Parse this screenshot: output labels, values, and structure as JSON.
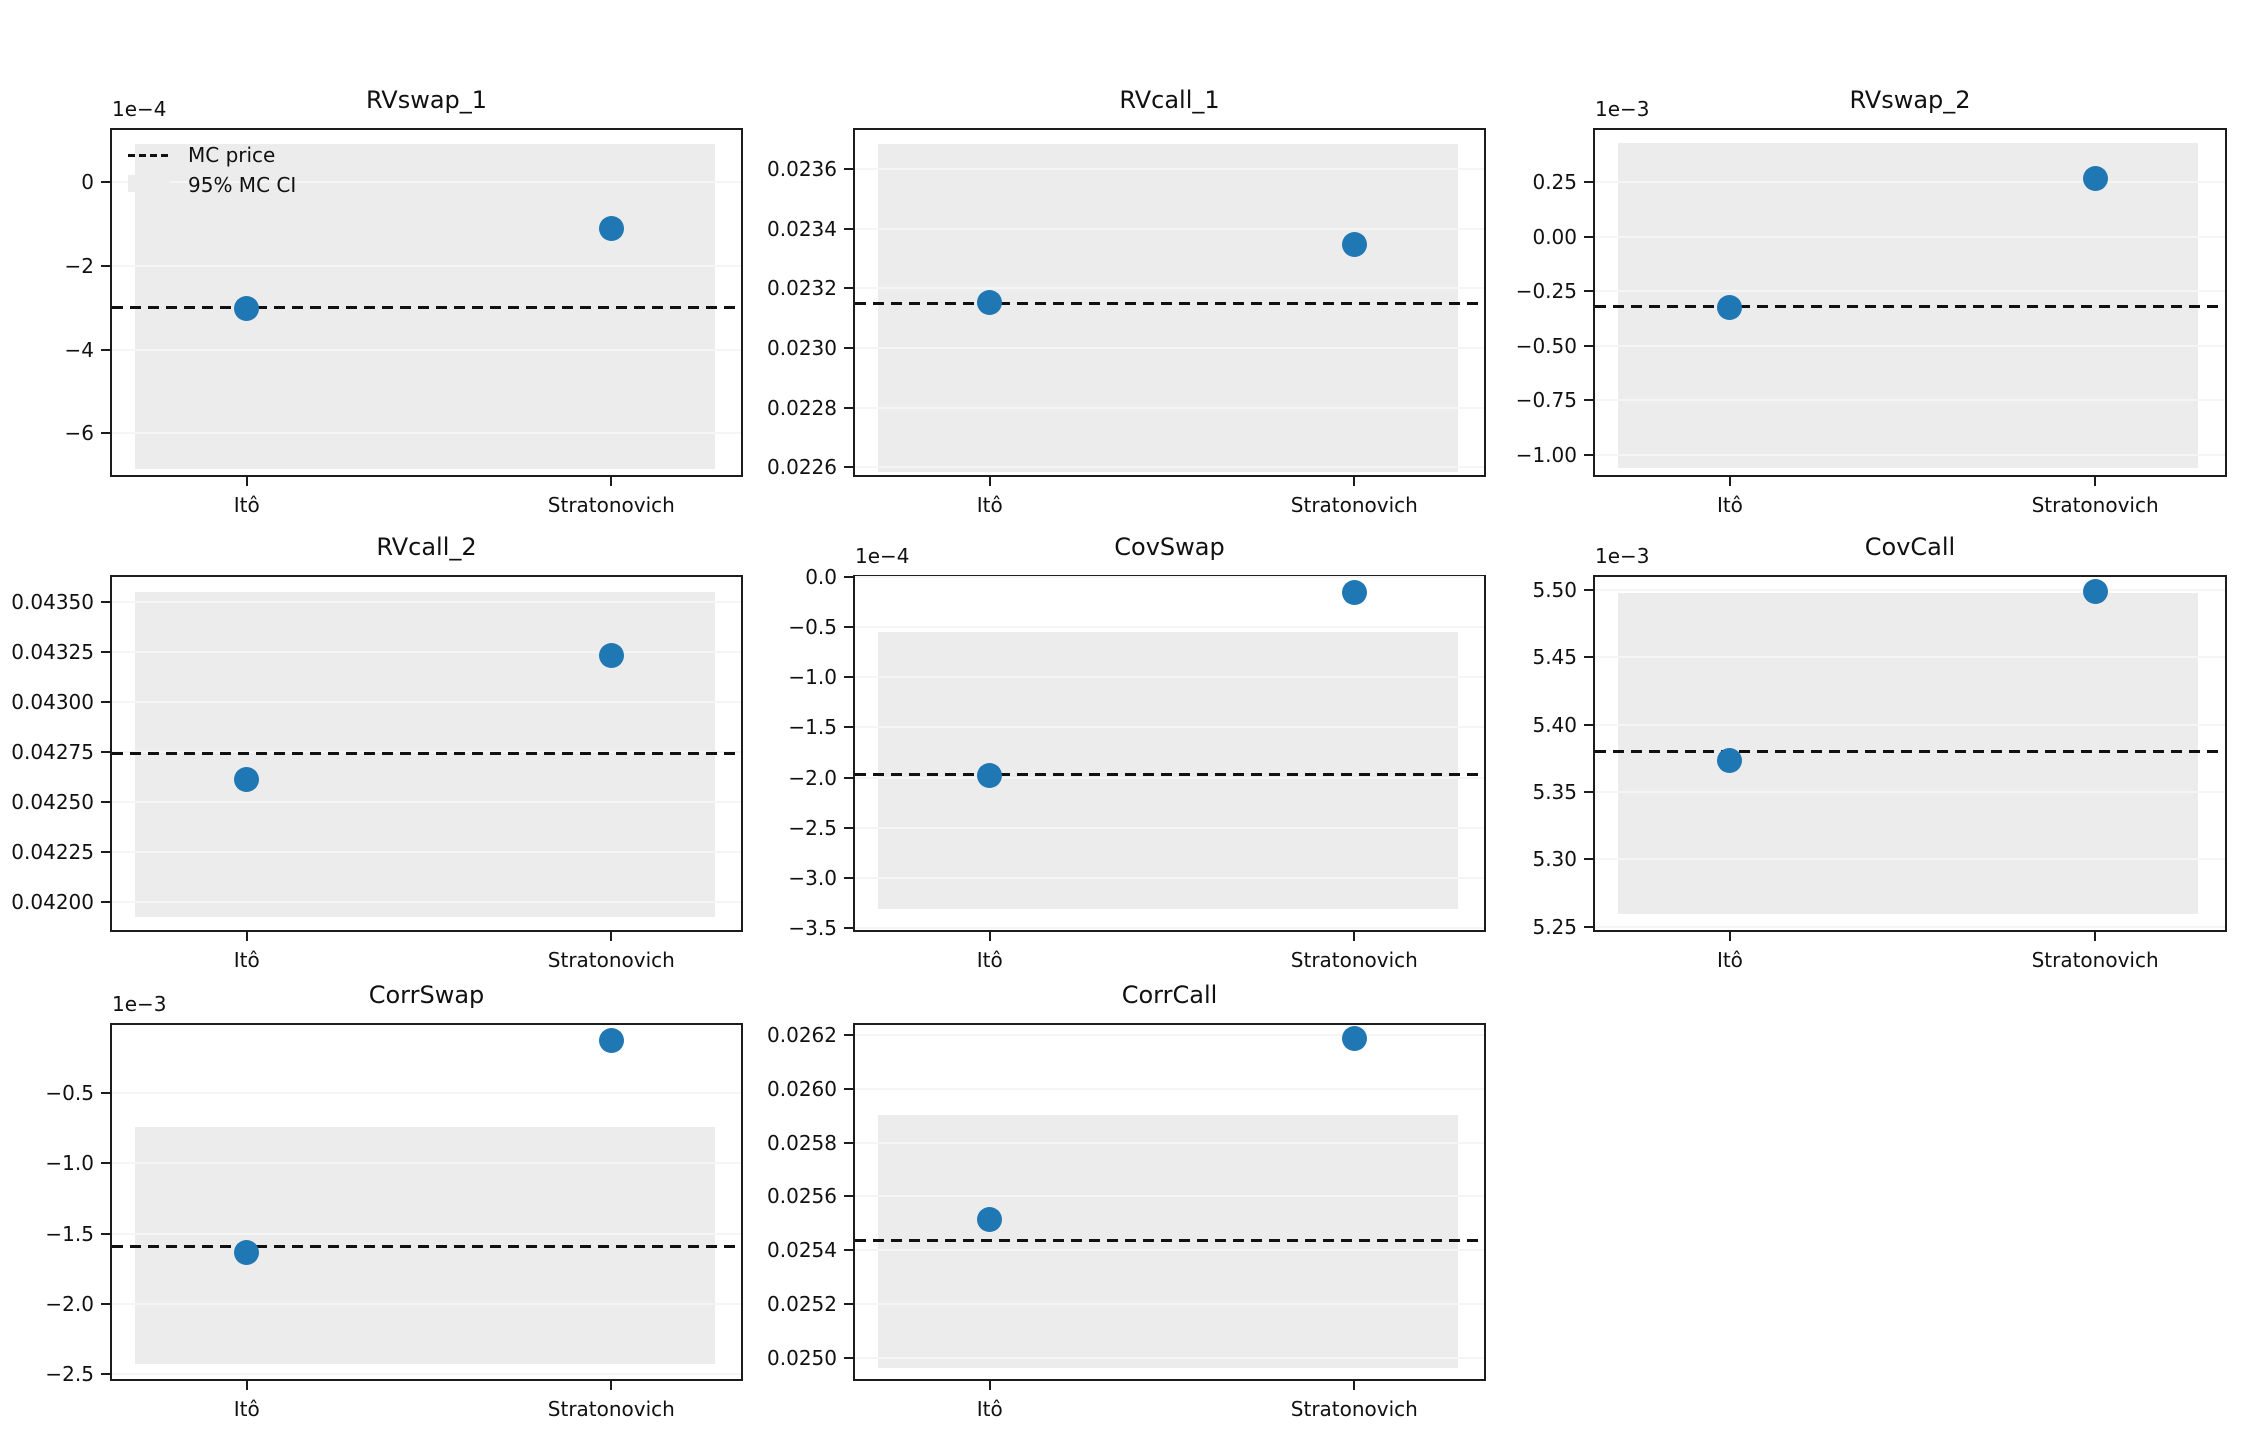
{
  "figure": {
    "background": "#ffffff",
    "point_color": "#1f77b4",
    "ci_color": "#ececec",
    "grid_color": "#f5f5f5",
    "line_color": "#111111",
    "spine_color": "#1c1c1c",
    "categories": [
      "Itô",
      "Stratonovich"
    ],
    "legend": {
      "mc_label": "MC price",
      "ci_label": "95% MC CI"
    }
  },
  "chart_data": [
    {
      "type": "scatter",
      "title": "RVswap_1",
      "offset_label": "1e−4",
      "legend": true,
      "categories": [
        "Itô",
        "Stratonovich"
      ],
      "values": {
        "ito": -0.000303,
        "strat": -0.00011
      },
      "mc_price": -0.000298,
      "ci": [
        -0.000687,
        9.1e-05
      ],
      "ylim": [
        -0.000705,
        0.00013
      ],
      "yticks": [
        {
          "v": 0.0,
          "label": "0"
        },
        {
          "v": -0.0002,
          "label": "−2"
        },
        {
          "v": -0.0004,
          "label": "−4"
        },
        {
          "v": -0.0006,
          "label": "−6"
        }
      ]
    },
    {
      "type": "scatter",
      "title": "RVcall_1",
      "offset_label": null,
      "legend": false,
      "categories": [
        "Itô",
        "Stratonovich"
      ],
      "values": {
        "ito": 0.023153,
        "strat": 0.023348
      },
      "mc_price": 0.023152,
      "ci": [
        0.022585,
        0.023684
      ],
      "ylim": [
        0.022567,
        0.023738
      ],
      "yticks": [
        {
          "v": 0.0236,
          "label": "0.0236"
        },
        {
          "v": 0.0234,
          "label": "0.0234"
        },
        {
          "v": 0.0232,
          "label": "0.0232"
        },
        {
          "v": 0.023,
          "label": "0.0230"
        },
        {
          "v": 0.0228,
          "label": "0.0228"
        },
        {
          "v": 0.0226,
          "label": "0.0226"
        }
      ]
    },
    {
      "type": "scatter",
      "title": "RVswap_2",
      "offset_label": "1e−3",
      "legend": false,
      "categories": [
        "Itô",
        "Stratonovich"
      ],
      "values": {
        "ito": -0.000325,
        "strat": 0.000268
      },
      "mc_price": -0.000318,
      "ci": [
        -0.00106,
        0.000429
      ],
      "ylim": [
        -0.001101,
        0.000497
      ],
      "yticks": [
        {
          "v": 0.00025,
          "label": "0.25"
        },
        {
          "v": 0.0,
          "label": "0.00"
        },
        {
          "v": -0.00025,
          "label": "−0.25"
        },
        {
          "v": -0.0005,
          "label": "−0.50"
        },
        {
          "v": -0.00075,
          "label": "−0.75"
        },
        {
          "v": -0.001,
          "label": "−1.00"
        }
      ]
    },
    {
      "type": "scatter",
      "title": "RVcall_2",
      "offset_label": null,
      "legend": false,
      "categories": [
        "Itô",
        "Stratonovich"
      ],
      "values": {
        "ito": 0.042615,
        "strat": 0.043235
      },
      "mc_price": 0.042745,
      "ci": [
        0.041925,
        0.04355
      ],
      "ylim": [
        0.04185,
        0.043635
      ],
      "yticks": [
        {
          "v": 0.0435,
          "label": "0.04350"
        },
        {
          "v": 0.04325,
          "label": "0.04325"
        },
        {
          "v": 0.043,
          "label": "0.04300"
        },
        {
          "v": 0.04275,
          "label": "0.04275"
        },
        {
          "v": 0.0425,
          "label": "0.04250"
        },
        {
          "v": 0.04225,
          "label": "0.04225"
        },
        {
          "v": 0.042,
          "label": "0.04200"
        }
      ]
    },
    {
      "type": "scatter",
      "title": "CovSwap",
      "offset_label": "1e−4",
      "legend": false,
      "categories": [
        "Itô",
        "Stratonovich"
      ],
      "values": {
        "ito": -0.000198,
        "strat": -1.5e-05
      },
      "mc_price": -0.000196,
      "ci": [
        -0.000331,
        -5.5e-05
      ],
      "ylim": [
        -0.000354,
        2e-06
      ],
      "yticks": [
        {
          "v": 0.0,
          "label": "0.0"
        },
        {
          "v": -5e-05,
          "label": "−0.5"
        },
        {
          "v": -0.0001,
          "label": "−1.0"
        },
        {
          "v": -0.00015,
          "label": "−1.5"
        },
        {
          "v": -0.0002,
          "label": "−2.0"
        },
        {
          "v": -0.00025,
          "label": "−2.5"
        },
        {
          "v": -0.0003,
          "label": "−3.0"
        },
        {
          "v": -0.00035,
          "label": "−3.5"
        }
      ]
    },
    {
      "type": "scatter",
      "title": "CovCall",
      "offset_label": "1e−3",
      "legend": false,
      "categories": [
        "Itô",
        "Stratonovich"
      ],
      "values": {
        "ito": 0.005373,
        "strat": 0.005499
      },
      "mc_price": 0.0053805,
      "ci": [
        0.005259,
        0.005498
      ],
      "ylim": [
        0.005246,
        0.005511
      ],
      "yticks": [
        {
          "v": 0.0055,
          "label": "5.50"
        },
        {
          "v": 0.00545,
          "label": "5.45"
        },
        {
          "v": 0.0054,
          "label": "5.40"
        },
        {
          "v": 0.00535,
          "label": "5.35"
        },
        {
          "v": 0.0053,
          "label": "5.30"
        },
        {
          "v": 0.00525,
          "label": "5.25"
        }
      ]
    },
    {
      "type": "scatter",
      "title": "CorrSwap",
      "offset_label": "1e−3",
      "legend": false,
      "categories": [
        "Itô",
        "Stratonovich"
      ],
      "values": {
        "ito": -0.001634,
        "strat": -0.000132
      },
      "mc_price": -0.001585,
      "ci": [
        -0.002429,
        -0.000747
      ],
      "ylim": [
        -0.002547,
        -5e-06
      ],
      "yticks": [
        {
          "v": -0.0005,
          "label": "−0.5"
        },
        {
          "v": -0.001,
          "label": "−1.0"
        },
        {
          "v": -0.0015,
          "label": "−1.5"
        },
        {
          "v": -0.002,
          "label": "−2.0"
        },
        {
          "v": -0.0025,
          "label": "−2.5"
        }
      ]
    },
    {
      "type": "scatter",
      "title": "CorrCall",
      "offset_label": null,
      "legend": false,
      "categories": [
        "Itô",
        "Stratonovich"
      ],
      "values": {
        "ito": 0.025514,
        "strat": 0.026189
      },
      "mc_price": 0.025437,
      "ci": [
        0.024963,
        0.025903
      ],
      "ylim": [
        0.024914,
        0.026245
      ],
      "yticks": [
        {
          "v": 0.0262,
          "label": "0.0262"
        },
        {
          "v": 0.026,
          "label": "0.0260"
        },
        {
          "v": 0.0258,
          "label": "0.0258"
        },
        {
          "v": 0.0256,
          "label": "0.0256"
        },
        {
          "v": 0.0254,
          "label": "0.0254"
        },
        {
          "v": 0.0252,
          "label": "0.0252"
        },
        {
          "v": 0.025,
          "label": "0.0250"
        }
      ]
    }
  ]
}
